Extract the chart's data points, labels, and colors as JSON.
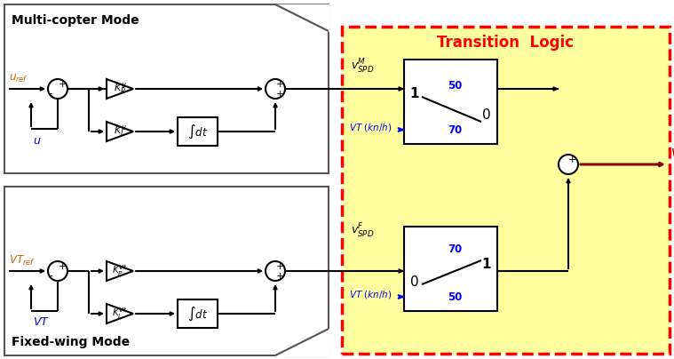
{
  "title": "Transition  Logic",
  "title_color": "#FF0000",
  "bg_color": "#FFFFFF",
  "transition_bg": "#FFFFA0",
  "top_box_label": "Multi-copter Mode",
  "bottom_box_label": "Fixed-wing Mode",
  "top_signal_label": "$v_{SPD}^{M}$",
  "bottom_signal_label": "$v_{SPD}^{F}$",
  "output_label": "$v_{SPD}$",
  "blue_color": "#0000FF",
  "dark_red": "#8B0000",
  "line_color": "#404040"
}
